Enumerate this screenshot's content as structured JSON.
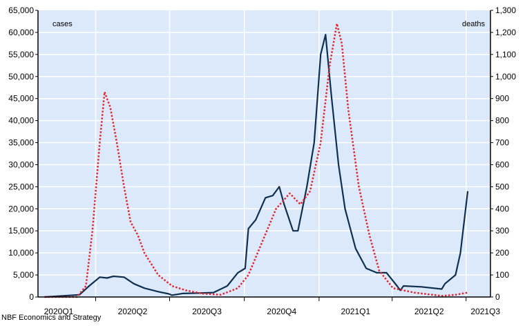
{
  "chart_data": {
    "type": "line",
    "title": "",
    "xlabel": "",
    "x_unit": "days since 2020-01-01",
    "x_tick_labels": [
      "2020Q1",
      "2020Q2",
      "2020Q3",
      "2020Q4",
      "2021Q1",
      "2021Q2",
      "2021Q3"
    ],
    "quarter_starts": [
      0,
      91,
      182,
      274,
      366,
      456,
      547
    ],
    "xlim": [
      20,
      577
    ],
    "left_axis": {
      "label": "cases",
      "ylim": [
        0,
        65000
      ],
      "step": 5000
    },
    "right_axis": {
      "label": "deaths",
      "ylim": [
        0,
        1300
      ],
      "step": 100
    },
    "grid": true,
    "source": "NBF Economics and Strategy",
    "colors": {
      "background": "#dce9fb",
      "cases": "#0e2f4f",
      "deaths": "#e8242a"
    },
    "series": [
      {
        "name": "cases",
        "axis": "left",
        "style": "solid",
        "x": [
          28,
          71,
          83,
          96,
          105,
          113,
          126,
          138,
          151,
          168,
          181,
          185,
          198,
          219,
          236,
          253,
          266,
          275,
          279,
          288,
          300,
          309,
          317,
          323,
          334,
          340,
          351,
          360,
          368,
          374,
          381,
          390,
          398,
          411,
          424,
          437,
          449,
          462,
          466,
          470,
          492,
          517,
          521,
          534,
          540,
          549
        ],
        "y": [
          0,
          500,
          2500,
          4500,
          4300,
          4700,
          4500,
          3000,
          2000,
          1200,
          700,
          400,
          800,
          900,
          1000,
          2500,
          5500,
          6500,
          15500,
          17500,
          22500,
          23000,
          25000,
          21000,
          15000,
          15000,
          25000,
          35000,
          55000,
          59500,
          46000,
          30000,
          20000,
          11000,
          6500,
          5500,
          5500,
          2500,
          1500,
          2500,
          2300,
          1800,
          3000,
          5000,
          10000,
          24000
        ]
      },
      {
        "name": "deaths",
        "axis": "right",
        "style": "dotted",
        "x": [
          28,
          68,
          79,
          87,
          96,
          102,
          109,
          117,
          126,
          134,
          143,
          151,
          168,
          185,
          202,
          223,
          245,
          266,
          279,
          296,
          313,
          330,
          343,
          355,
          368,
          379,
          388,
          394,
          402,
          415,
          428,
          440,
          457,
          483,
          517,
          534,
          549
        ],
        "y": [
          0,
          0,
          50,
          300,
          700,
          930,
          860,
          700,
          500,
          340,
          280,
          200,
          100,
          50,
          30,
          15,
          10,
          40,
          100,
          250,
          400,
          470,
          420,
          480,
          700,
          1050,
          1240,
          1150,
          850,
          500,
          280,
          120,
          40,
          20,
          5,
          10,
          20
        ]
      }
    ]
  }
}
